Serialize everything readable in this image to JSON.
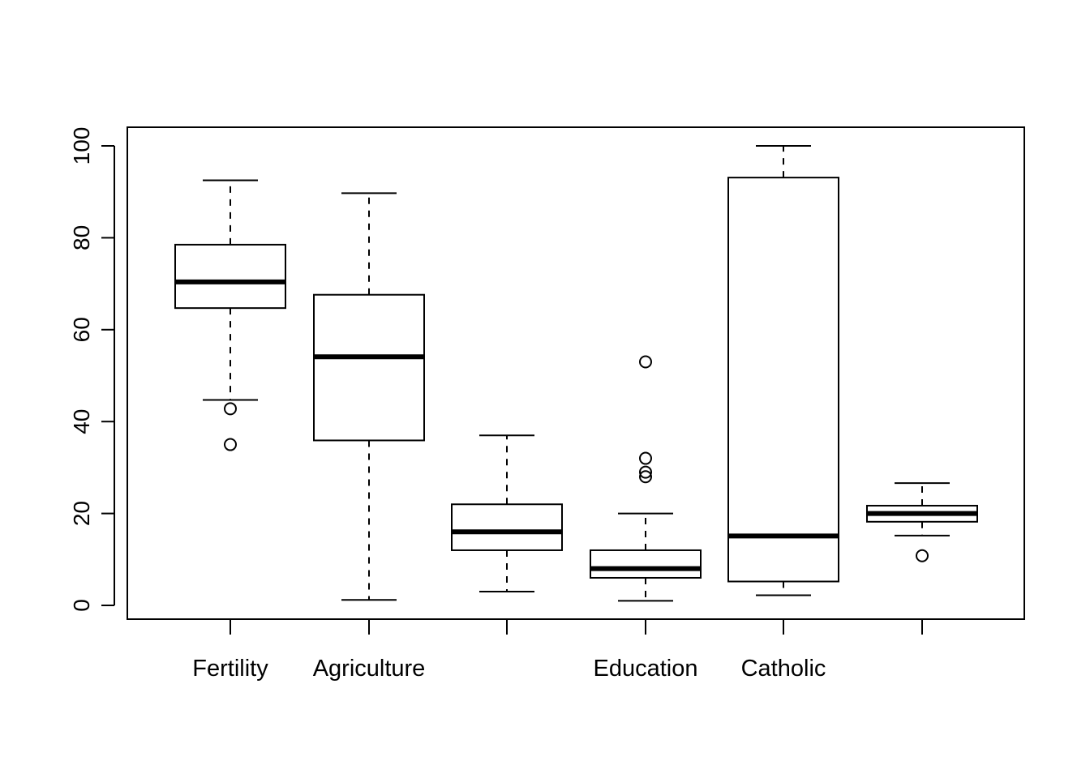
{
  "chart_data": {
    "type": "boxplot",
    "title": "",
    "xlabel": "",
    "ylabel": "",
    "ylim": [
      -3,
      104
    ],
    "yticks": [
      0,
      20,
      40,
      60,
      80,
      100
    ],
    "ytick_labels": [
      "0",
      "20",
      "40",
      "60",
      "80",
      "100"
    ],
    "grid": false,
    "categories": [
      "Fertility",
      "Agriculture",
      "",
      "Education",
      "Catholic",
      ""
    ],
    "boxes": [
      {
        "q1": 64.7,
        "median": 70.4,
        "q3": 78.5,
        "whisker_low": 44.7,
        "whisker_high": 92.5,
        "outliers": [
          42.8,
          35.0
        ]
      },
      {
        "q1": 35.9,
        "median": 54.1,
        "q3": 67.6,
        "whisker_low": 1.2,
        "whisker_high": 89.7,
        "outliers": []
      },
      {
        "q1": 12.0,
        "median": 16.0,
        "q3": 22.0,
        "whisker_low": 3.0,
        "whisker_high": 37.0,
        "outliers": []
      },
      {
        "q1": 6.0,
        "median": 8.0,
        "q3": 12.0,
        "whisker_low": 1.0,
        "whisker_high": 20.0,
        "outliers": [
          53.0,
          32.0,
          29.0,
          28.0
        ]
      },
      {
        "q1": 5.2,
        "median": 15.1,
        "q3": 93.1,
        "whisker_low": 2.2,
        "whisker_high": 100.0,
        "outliers": []
      },
      {
        "q1": 18.2,
        "median": 20.0,
        "q3": 21.7,
        "whisker_low": 15.2,
        "whisker_high": 26.6,
        "outliers": [
          10.8
        ]
      }
    ]
  }
}
